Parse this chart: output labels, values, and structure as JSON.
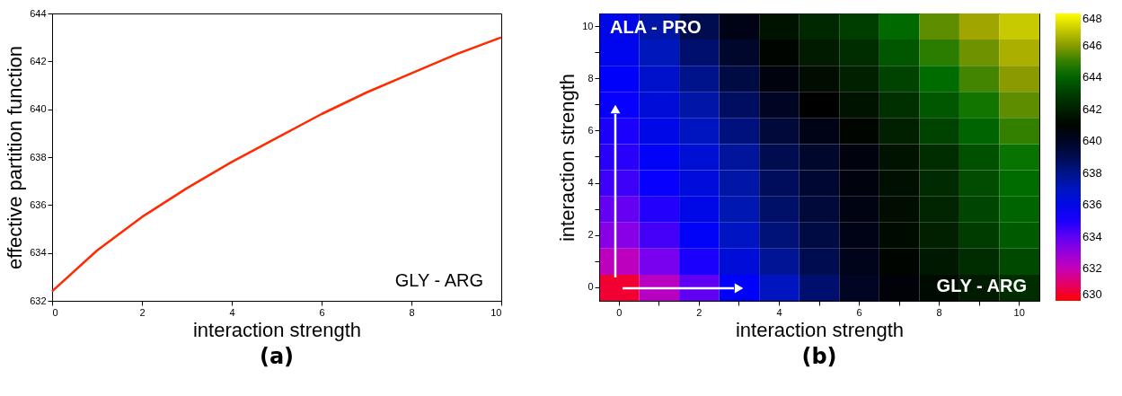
{
  "chart_data": [
    {
      "type": "line",
      "title": "(a)",
      "xlabel": "interaction strength",
      "ylabel": "effective partition function",
      "x": [
        0,
        1,
        2,
        3,
        4,
        5,
        6,
        7,
        8,
        9,
        10
      ],
      "series": [
        {
          "color": "#ff2a00",
          "values": [
            632.4,
            634.1,
            635.5,
            636.7,
            637.8,
            638.8,
            639.8,
            640.7,
            641.5,
            642.3,
            643.0
          ]
        }
      ],
      "xlim": [
        0,
        10
      ],
      "xticks": [
        0,
        2,
        4,
        6,
        8,
        10
      ],
      "ylim": [
        632,
        644
      ],
      "yticks": [
        632,
        634,
        636,
        638,
        640,
        642,
        644
      ],
      "grid": false,
      "legend": false,
      "marker": "none",
      "line_style": "solid",
      "annotations": [
        "GLY - ARG"
      ]
    },
    {
      "type": "heatmap",
      "title": "(b)",
      "xlabel": "interaction strength",
      "ylabel": "interaction strength",
      "categories": [
        "0",
        null,
        "2",
        null,
        "4",
        null,
        "6",
        null,
        "8",
        null,
        "10"
      ],
      "y_categories": [
        "10",
        null,
        "8",
        null,
        "6",
        null,
        "4",
        null,
        "2",
        null,
        "0"
      ],
      "clim": [
        630,
        648
      ],
      "cticks": [
        630,
        632,
        634,
        636,
        638,
        640,
        642,
        644,
        646,
        648
      ],
      "cells": [
        [
          636.0,
          637.5,
          639.0,
          640.3,
          641.5,
          642.3,
          643.0,
          644.2,
          645.5,
          646.3,
          647.0
        ],
        [
          635.8,
          637.1,
          638.5,
          639.8,
          641.0,
          641.8,
          642.5,
          643.7,
          644.9,
          645.7,
          646.5
        ],
        [
          635.5,
          636.7,
          638.0,
          639.3,
          640.5,
          641.3,
          642.0,
          643.1,
          644.3,
          645.2,
          646.0
        ],
        [
          635.3,
          636.4,
          637.5,
          638.7,
          640.0,
          640.8,
          641.5,
          642.6,
          643.7,
          644.6,
          645.5
        ],
        [
          635.0,
          636.0,
          637.0,
          638.2,
          639.5,
          640.3,
          641.0,
          642.0,
          643.1,
          644.1,
          645.0
        ],
        [
          634.8,
          635.6,
          636.5,
          637.7,
          639.0,
          639.8,
          640.5,
          641.5,
          642.5,
          643.5,
          644.5
        ],
        [
          634.5,
          635.3,
          636.3,
          637.5,
          638.8,
          639.7,
          640.5,
          641.4,
          642.4,
          643.4,
          644.3
        ],
        [
          633.9,
          634.9,
          636.0,
          637.3,
          638.6,
          639.5,
          640.4,
          641.3,
          642.2,
          643.2,
          644.1
        ],
        [
          633.3,
          634.4,
          635.6,
          636.9,
          638.3,
          639.3,
          640.3,
          641.2,
          642.0,
          642.9,
          643.8
        ],
        [
          632.2,
          633.6,
          635.0,
          636.4,
          637.8,
          639.0,
          640.2,
          641.0,
          641.7,
          642.5,
          643.3
        ],
        [
          630.5,
          632.3,
          634.0,
          635.5,
          637.0,
          638.5,
          640.0,
          640.6,
          641.2,
          641.8,
          642.5
        ]
      ],
      "annotations": [
        "ALA - PRO",
        "GLY - ARG"
      ]
    }
  ]
}
